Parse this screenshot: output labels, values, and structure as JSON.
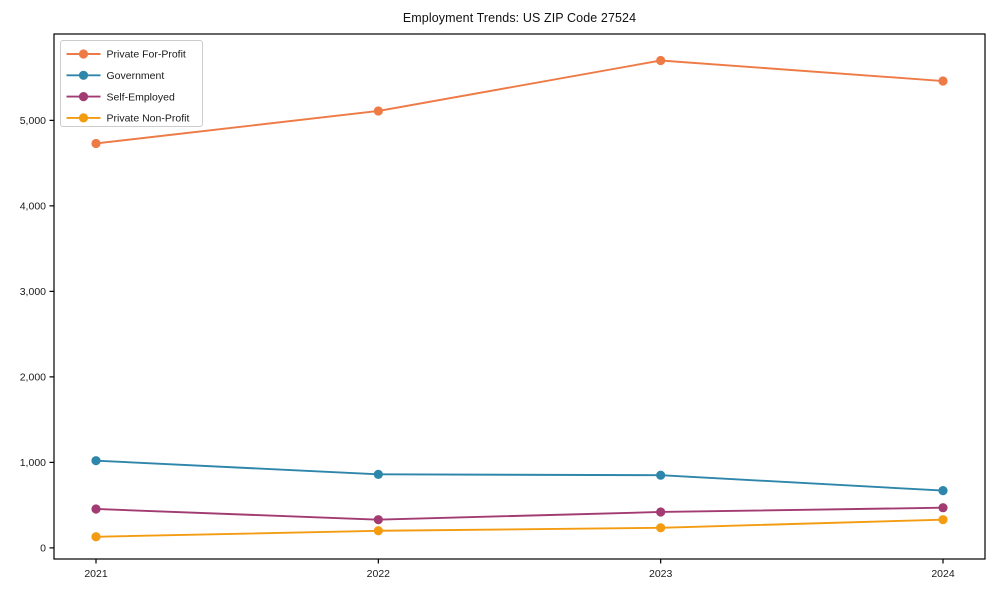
{
  "chart_data": {
    "type": "line",
    "title": "Employment Trends: US ZIP Code 27524",
    "xlabel": "",
    "ylabel": "",
    "x_categories": [
      "2021",
      "2022",
      "2023",
      "2024"
    ],
    "series": [
      {
        "name": "Private For-Profit",
        "color": "#EE7A46",
        "values": [
          4730,
          5110,
          5700,
          5460
        ]
      },
      {
        "name": "Government",
        "color": "#2E86AB",
        "values": [
          1020,
          860,
          850,
          670
        ]
      },
      {
        "name": "Self-Employed",
        "color": "#A23B72",
        "values": [
          455,
          330,
          420,
          470
        ]
      },
      {
        "name": "Private Non-Profit",
        "color": "#F39C12",
        "values": [
          130,
          200,
          235,
          330
        ]
      }
    ],
    "ylim": [
      -130,
      6010
    ],
    "yticks": [
      0,
      1000,
      2000,
      3000,
      4000,
      5000
    ],
    "ytick_labels": [
      "0",
      "1,000",
      "2,000",
      "3,000",
      "4,000",
      "5,000"
    ],
    "grid": false,
    "legend_position": "upper left",
    "marker": "circle",
    "axis_color": "#000000",
    "text_color": "#1a1a1a",
    "legend_border_color": "#cccccc",
    "background_color": "#ffffff"
  }
}
